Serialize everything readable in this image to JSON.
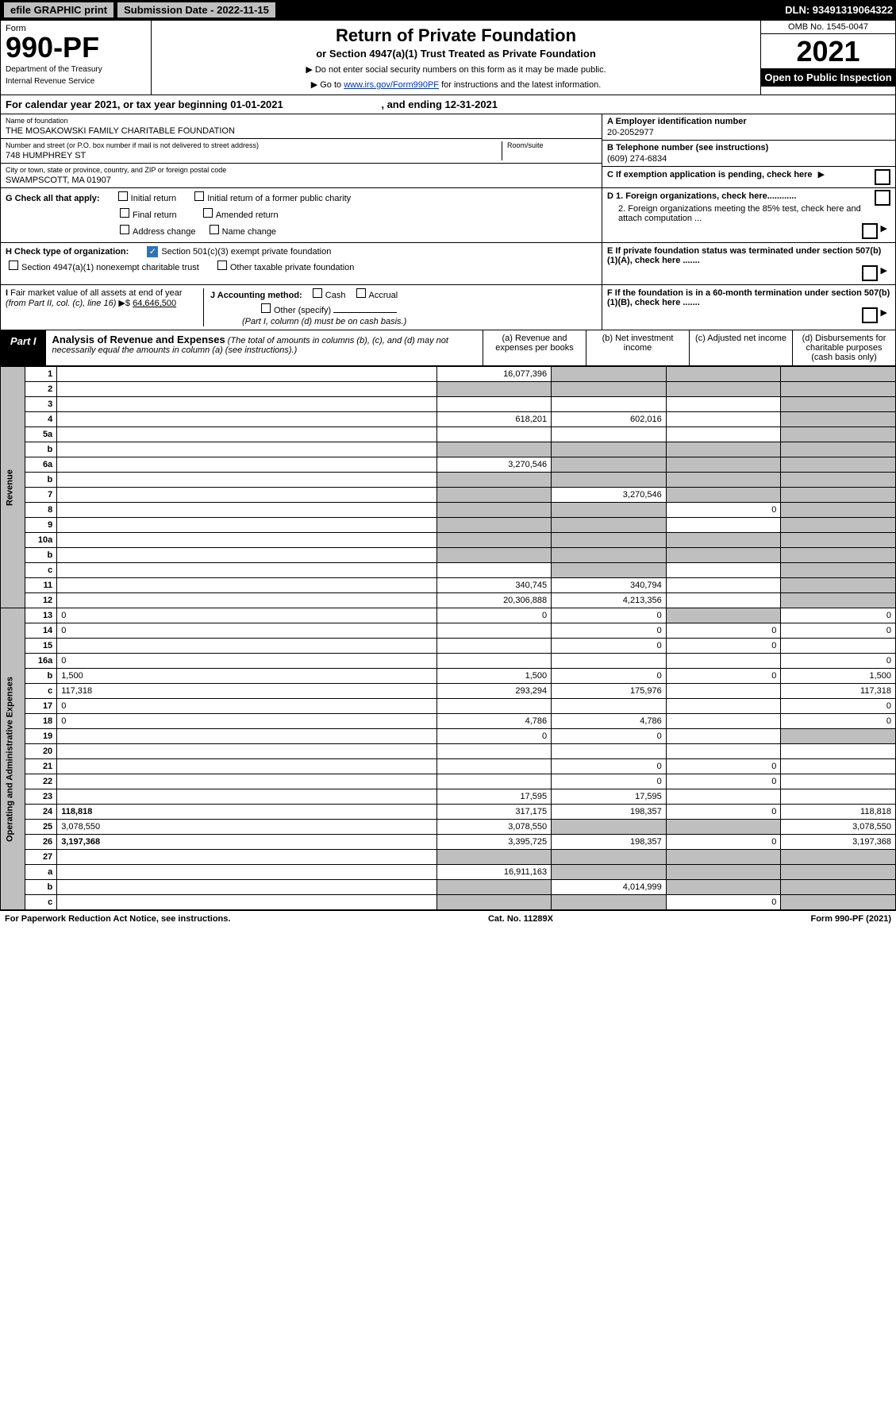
{
  "topbar": {
    "efile": "efile GRAPHIC print",
    "submission_label": "Submission Date - 2022-11-15",
    "dln": "DLN: 93491319064322"
  },
  "header": {
    "form_word": "Form",
    "form_num": "990-PF",
    "dept": "Department of the Treasury",
    "irs": "Internal Revenue Service",
    "title": "Return of Private Foundation",
    "subtitle": "or Section 4947(a)(1) Trust Treated as Private Foundation",
    "instr1": "▶ Do not enter social security numbers on this form as it may be made public.",
    "instr2_pre": "▶ Go to ",
    "instr2_link": "www.irs.gov/Form990PF",
    "instr2_post": " for instructions and the latest information.",
    "omb": "OMB No. 1545-0047",
    "year": "2021",
    "open": "Open to Public Inspection"
  },
  "cal_year": {
    "text_pre": "For calendar year 2021, or tax year beginning ",
    "begin": "01-01-2021",
    "text_mid": " , and ending ",
    "end": "12-31-2021"
  },
  "info": {
    "name_label": "Name of foundation",
    "name": "THE MOSAKOWSKI FAMILY CHARITABLE FOUNDATION",
    "ein_label": "A Employer identification number",
    "ein": "20-2052977",
    "addr_label": "Number and street (or P.O. box number if mail is not delivered to street address)",
    "addr": "748 HUMPHREY ST",
    "room_label": "Room/suite",
    "phone_label": "B Telephone number (see instructions)",
    "phone": "(609) 274-6834",
    "city_label": "City or town, state or province, country, and ZIP or foreign postal code",
    "city": "SWAMPSCOTT, MA  01907",
    "c_label": "C If exemption application is pending, check here"
  },
  "g_row": {
    "label": "G Check all that apply:",
    "opts": [
      "Initial return",
      "Initial return of a former public charity",
      "Final return",
      "Amended return",
      "Address change",
      "Name change"
    ]
  },
  "d_row": {
    "d1": "D 1. Foreign organizations, check here............",
    "d2": "2. Foreign organizations meeting the 85% test, check here and attach computation ...",
    "e": "E  If private foundation status was terminated under section 507(b)(1)(A), check here .......",
    "f": "F  If the foundation is in a 60-month termination under section 507(b)(1)(B), check here ......."
  },
  "h_row": {
    "label": "H Check type of organization:",
    "opt1": "Section 501(c)(3) exempt private foundation",
    "opt2": "Section 4947(a)(1) nonexempt charitable trust",
    "opt3": "Other taxable private foundation"
  },
  "i_row": {
    "label": "I Fair market value of all assets at end of year (from Part II, col. (c), line 16) ▶$ ",
    "value": "64,646,500"
  },
  "j_row": {
    "label": "J Accounting method:",
    "opts": [
      "Cash",
      "Accrual"
    ],
    "other": "Other (specify)",
    "note": "(Part I, column (d) must be on cash basis.)"
  },
  "part1": {
    "tab": "Part I",
    "title": "Analysis of Revenue and Expenses",
    "title_note": " (The total of amounts in columns (b), (c), and (d) may not necessarily equal the amounts in column (a) (see instructions).)",
    "col_a": "(a)  Revenue and expenses per books",
    "col_b": "(b)  Net investment income",
    "col_c": "(c)  Adjusted net income",
    "col_d": "(d)  Disbursements for charitable purposes (cash basis only)"
  },
  "revenue_label": "Revenue",
  "expenses_label": "Operating and Administrative Expenses",
  "rows": [
    {
      "n": "1",
      "d": "",
      "a": "16,077,396",
      "b": "",
      "c": "",
      "b_sh": true,
      "c_sh": true,
      "d_sh": true
    },
    {
      "n": "2",
      "d": "",
      "a": "",
      "b": "",
      "c": "",
      "a_sh": true,
      "b_sh": true,
      "c_sh": true,
      "d_sh": true,
      "bold": false
    },
    {
      "n": "3",
      "d": "",
      "a": "",
      "b": "",
      "c": "",
      "d_sh": true
    },
    {
      "n": "4",
      "d": "",
      "a": "618,201",
      "b": "602,016",
      "c": "",
      "d_sh": true
    },
    {
      "n": "5a",
      "d": "",
      "a": "",
      "b": "",
      "c": "",
      "d_sh": true
    },
    {
      "n": "b",
      "d": "",
      "a": "",
      "b": "",
      "c": "",
      "a_sh": true,
      "b_sh": true,
      "c_sh": true,
      "d_sh": true
    },
    {
      "n": "6a",
      "d": "",
      "a": "3,270,546",
      "b": "",
      "c": "",
      "b_sh": true,
      "c_sh": true,
      "d_sh": true
    },
    {
      "n": "b",
      "d": "",
      "a": "",
      "b": "",
      "c": "",
      "a_sh": true,
      "b_sh": true,
      "c_sh": true,
      "d_sh": true
    },
    {
      "n": "7",
      "d": "",
      "a": "",
      "b": "3,270,546",
      "c": "",
      "a_sh": true,
      "c_sh": true,
      "d_sh": true
    },
    {
      "n": "8",
      "d": "",
      "a": "",
      "b": "",
      "c": "0",
      "a_sh": true,
      "b_sh": true,
      "d_sh": true
    },
    {
      "n": "9",
      "d": "",
      "a": "",
      "b": "",
      "c": "",
      "a_sh": true,
      "b_sh": true,
      "d_sh": true
    },
    {
      "n": "10a",
      "d": "",
      "a": "",
      "b": "",
      "c": "",
      "a_sh": true,
      "b_sh": true,
      "c_sh": true,
      "d_sh": true
    },
    {
      "n": "b",
      "d": "",
      "a": "",
      "b": "",
      "c": "",
      "a_sh": true,
      "b_sh": true,
      "c_sh": true,
      "d_sh": true
    },
    {
      "n": "c",
      "d": "",
      "a": "",
      "b": "",
      "c": "",
      "b_sh": true,
      "d_sh": true
    },
    {
      "n": "11",
      "d": "",
      "a": "340,745",
      "b": "340,794",
      "c": "",
      "d_sh": true
    },
    {
      "n": "12",
      "d": "",
      "a": "20,306,888",
      "b": "4,213,356",
      "c": "",
      "d_sh": true,
      "bold": true
    },
    {
      "n": "13",
      "d": "0",
      "a": "0",
      "b": "0",
      "c": "",
      "c_sh": true
    },
    {
      "n": "14",
      "d": "0",
      "a": "",
      "b": "0",
      "c": "0"
    },
    {
      "n": "15",
      "d": "",
      "a": "",
      "b": "0",
      "c": "0"
    },
    {
      "n": "16a",
      "d": "0",
      "a": "",
      "b": "",
      "c": ""
    },
    {
      "n": "b",
      "d": "1,500",
      "a": "1,500",
      "b": "0",
      "c": "0"
    },
    {
      "n": "c",
      "d": "117,318",
      "a": "293,294",
      "b": "175,976",
      "c": ""
    },
    {
      "n": "17",
      "d": "0",
      "a": "",
      "b": "",
      "c": ""
    },
    {
      "n": "18",
      "d": "0",
      "a": "4,786",
      "b": "4,786",
      "c": ""
    },
    {
      "n": "19",
      "d": "",
      "a": "0",
      "b": "0",
      "c": "",
      "d_sh": true
    },
    {
      "n": "20",
      "d": "",
      "a": "",
      "b": "",
      "c": ""
    },
    {
      "n": "21",
      "d": "",
      "a": "",
      "b": "0",
      "c": "0"
    },
    {
      "n": "22",
      "d": "",
      "a": "",
      "b": "0",
      "c": "0"
    },
    {
      "n": "23",
      "d": "",
      "a": "17,595",
      "b": "17,595",
      "c": ""
    },
    {
      "n": "24",
      "d": "118,818",
      "a": "317,175",
      "b": "198,357",
      "c": "0",
      "bold": true
    },
    {
      "n": "25",
      "d": "3,078,550",
      "a": "3,078,550",
      "b": "",
      "c": "",
      "b_sh": true,
      "c_sh": true
    },
    {
      "n": "26",
      "d": "3,197,368",
      "a": "3,395,725",
      "b": "198,357",
      "c": "0",
      "bold": true
    },
    {
      "n": "27",
      "d": "",
      "a": "",
      "b": "",
      "c": "",
      "a_sh": true,
      "b_sh": true,
      "c_sh": true,
      "d_sh": true
    },
    {
      "n": "a",
      "d": "",
      "a": "16,911,163",
      "b": "",
      "c": "",
      "b_sh": true,
      "c_sh": true,
      "d_sh": true,
      "bold": true
    },
    {
      "n": "b",
      "d": "",
      "a": "",
      "b": "4,014,999",
      "c": "",
      "a_sh": true,
      "c_sh": true,
      "d_sh": true,
      "bold": true
    },
    {
      "n": "c",
      "d": "",
      "a": "",
      "b": "",
      "c": "0",
      "a_sh": true,
      "b_sh": true,
      "d_sh": true,
      "bold": true
    }
  ],
  "footer": {
    "left": "For Paperwork Reduction Act Notice, see instructions.",
    "mid": "Cat. No. 11289X",
    "right": "Form 990-PF (2021)"
  }
}
